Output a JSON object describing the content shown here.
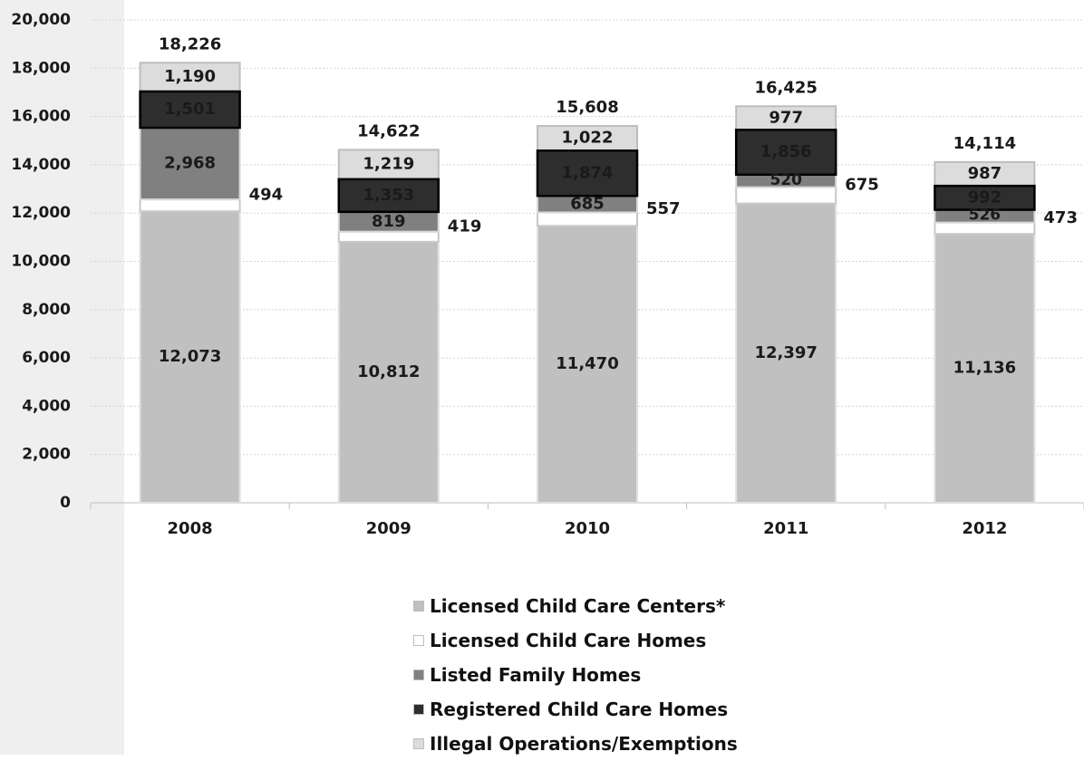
{
  "chart_data": {
    "type": "bar",
    "stacked": true,
    "categories": [
      "2008",
      "2009",
      "2010",
      "2011",
      "2012"
    ],
    "series": [
      {
        "name": "Licensed Child Care Centers*",
        "color": "#c0c0c0",
        "values": [
          12073,
          10812,
          11470,
          12397,
          11136
        ],
        "labels": [
          "12,073",
          "10,812",
          "11,470",
          "12,397",
          "11,136"
        ]
      },
      {
        "name": "Licensed Child Care Homes",
        "color": "#ffffff",
        "values": [
          494,
          419,
          557,
          675,
          473
        ],
        "labels": [
          "494",
          "419",
          "557",
          "675",
          "473"
        ]
      },
      {
        "name": "Listed Family Homes",
        "color": "#808080",
        "values": [
          2968,
          819,
          685,
          520,
          526
        ],
        "labels": [
          "2,968",
          "819",
          "685",
          "520",
          "526"
        ]
      },
      {
        "name": "Registered Child Care Homes",
        "color": "#2e2e2e",
        "values": [
          1501,
          1353,
          1874,
          1856,
          992
        ],
        "labels": [
          "1,501",
          "1,353",
          "1,874",
          "1,856",
          "992"
        ]
      },
      {
        "name": "Illegal Operations/Exemptions",
        "color": "#dcdcdc",
        "values": [
          1190,
          1219,
          1022,
          977,
          987
        ],
        "labels": [
          "1,190",
          "1,219",
          "1,022",
          "977",
          "987"
        ]
      }
    ],
    "totals": [
      "18,226",
      "14,622",
      "15,608",
      "16,425",
      "14,114"
    ],
    "y_ticks": [
      "0",
      "2,000",
      "4,000",
      "6,000",
      "8,000",
      "10,000",
      "12,000",
      "14,000",
      "16,000",
      "18,000",
      "20,000"
    ],
    "ylim": [
      0,
      20000
    ],
    "grid": true,
    "legend_position": "bottom"
  }
}
